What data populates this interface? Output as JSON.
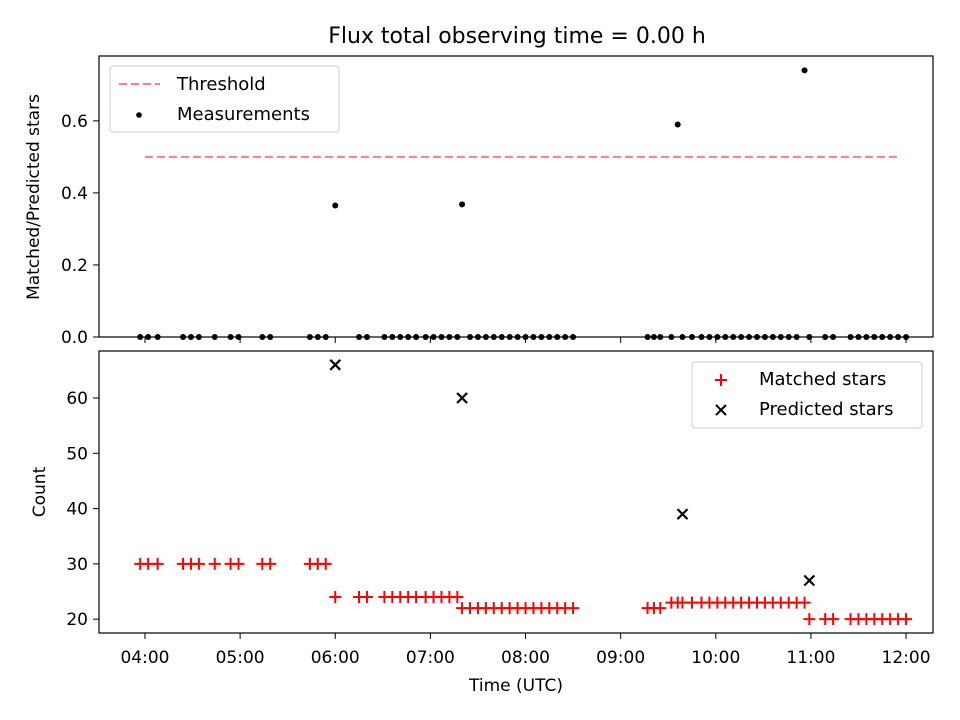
{
  "title": "Flux total observing time = 0.00 h",
  "xlabel": "Time (UTC)",
  "x_ticks": [
    "04:00",
    "05:00",
    "06:00",
    "07:00",
    "08:00",
    "09:00",
    "10:00",
    "11:00",
    "12:00"
  ],
  "colors": {
    "threshold": "#ff7f7f",
    "measurement": "#000000",
    "matched": "#ff0000",
    "predicted": "#000000"
  },
  "chart_data": [
    {
      "type": "scatter",
      "ylabel": "Matched/Predicted stars",
      "ylim": [
        0,
        0.78
      ],
      "y_ticks": [
        "0.0",
        "0.2",
        "0.4",
        "0.6"
      ],
      "x_range": [
        "03:31",
        "12:17"
      ],
      "legend_position": "top-left",
      "threshold": {
        "name": "Threshold",
        "value": 0.5,
        "x": [
          "04:00",
          "11:55"
        ]
      },
      "measurements": {
        "name": "Measurements",
        "x": [
          "03:57",
          "04:02",
          "04:08",
          "04:24",
          "04:29",
          "04:34",
          "04:44",
          "04:54",
          "04:59",
          "05:14",
          "05:19",
          "05:44",
          "05:49",
          "05:54",
          "06:00",
          "06:15",
          "06:20",
          "06:31",
          "06:36",
          "06:41",
          "06:46",
          "06:51",
          "06:57",
          "07:02",
          "07:07",
          "07:12",
          "07:17",
          "07:20",
          "07:25",
          "07:30",
          "07:35",
          "07:40",
          "07:45",
          "07:50",
          "07:55",
          "08:00",
          "08:05",
          "08:10",
          "08:15",
          "08:20",
          "08:25",
          "08:30",
          "09:17",
          "09:21",
          "09:25",
          "09:32",
          "09:36",
          "09:39",
          "09:45",
          "09:51",
          "09:56",
          "10:01",
          "10:06",
          "10:11",
          "10:16",
          "10:21",
          "10:26",
          "10:31",
          "10:36",
          "10:41",
          "10:46",
          "10:51",
          "10:56",
          "10:59",
          "11:09",
          "11:14",
          "11:25",
          "11:30",
          "11:35",
          "11:40",
          "11:45",
          "11:50",
          "11:55",
          "12:00"
        ],
        "y": [
          0,
          0,
          0,
          0,
          0,
          0,
          0,
          0,
          0,
          0,
          0,
          0,
          0,
          0,
          0.365,
          0,
          0,
          0,
          0,
          0,
          0,
          0,
          0,
          0,
          0,
          0,
          0,
          0.368,
          0,
          0,
          0,
          0,
          0,
          0,
          0,
          0,
          0,
          0,
          0,
          0,
          0,
          0,
          0,
          0,
          0,
          0,
          0.59,
          0,
          0,
          0,
          0,
          0,
          0,
          0,
          0,
          0,
          0,
          0,
          0,
          0,
          0,
          0,
          0.74,
          0,
          0,
          0,
          0,
          0,
          0,
          0,
          0,
          0,
          0,
          0
        ]
      }
    },
    {
      "type": "scatter",
      "ylabel": "Count",
      "ylim": [
        17.5,
        68.5
      ],
      "y_ticks": [
        "20",
        "30",
        "40",
        "50",
        "60"
      ],
      "x_range": [
        "03:31",
        "12:17"
      ],
      "legend_position": "top-right",
      "series": [
        {
          "name": "Matched stars",
          "marker": "+",
          "x": [
            "03:57",
            "04:02",
            "04:08",
            "04:24",
            "04:29",
            "04:34",
            "04:44",
            "04:54",
            "04:59",
            "05:14",
            "05:19",
            "05:44",
            "05:49",
            "05:54",
            "06:00",
            "06:15",
            "06:20",
            "06:31",
            "06:36",
            "06:41",
            "06:46",
            "06:51",
            "06:57",
            "07:02",
            "07:07",
            "07:12",
            "07:17",
            "07:20",
            "07:25",
            "07:30",
            "07:35",
            "07:40",
            "07:45",
            "07:50",
            "07:55",
            "08:00",
            "08:05",
            "08:10",
            "08:15",
            "08:20",
            "08:25",
            "08:30",
            "09:17",
            "09:21",
            "09:25",
            "09:32",
            "09:36",
            "09:39",
            "09:45",
            "09:51",
            "09:56",
            "10:01",
            "10:06",
            "10:11",
            "10:16",
            "10:21",
            "10:26",
            "10:31",
            "10:36",
            "10:41",
            "10:46",
            "10:51",
            "10:56",
            "10:59",
            "11:09",
            "11:14",
            "11:25",
            "11:30",
            "11:35",
            "11:40",
            "11:45",
            "11:50",
            "11:55",
            "12:00"
          ],
          "y": [
            30,
            30,
            30,
            30,
            30,
            30,
            30,
            30,
            30,
            30,
            30,
            30,
            30,
            30,
            24,
            24,
            24,
            24,
            24,
            24,
            24,
            24,
            24,
            24,
            24,
            24,
            24,
            22,
            22,
            22,
            22,
            22,
            22,
            22,
            22,
            22,
            22,
            22,
            22,
            22,
            22,
            22,
            22,
            22,
            22,
            23,
            23,
            23,
            23,
            23,
            23,
            23,
            23,
            23,
            23,
            23,
            23,
            23,
            23,
            23,
            23,
            23,
            23,
            20,
            20,
            20,
            20,
            20,
            20,
            20,
            20,
            20,
            20,
            20
          ]
        },
        {
          "name": "Predicted stars",
          "marker": "x",
          "x": [
            "06:00",
            "07:20",
            "09:39",
            "10:59"
          ],
          "y": [
            66,
            60,
            39,
            27
          ]
        }
      ]
    }
  ]
}
